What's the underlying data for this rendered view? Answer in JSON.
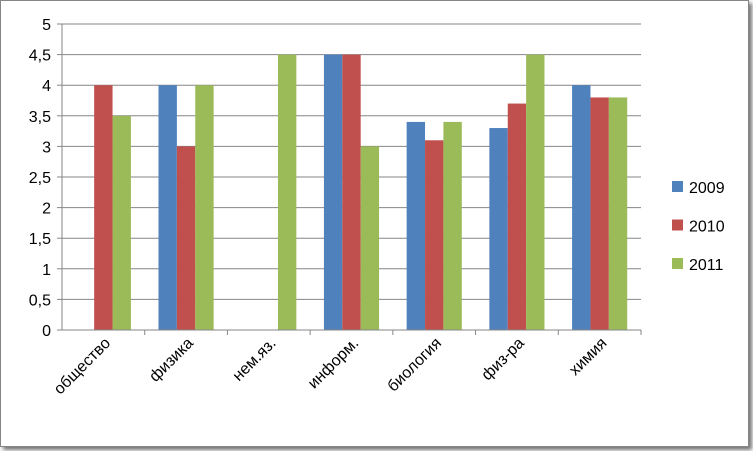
{
  "chart_data": {
    "type": "bar",
    "title": "",
    "xlabel": "",
    "ylabel": "",
    "categories": [
      "общество",
      "физика",
      "нем.яз.",
      "информ.",
      "биология",
      "физ-ра",
      "химия"
    ],
    "series": [
      {
        "name": "2009",
        "color": "#4F81BD",
        "values": [
          null,
          4,
          null,
          4.5,
          3.4,
          3.3,
          4
        ]
      },
      {
        "name": "2010",
        "color": "#C0504D",
        "values": [
          4,
          3,
          null,
          4.5,
          3.1,
          3.7,
          3.8
        ]
      },
      {
        "name": "2011",
        "color": "#9BBB59",
        "values": [
          3.5,
          4,
          4.5,
          3,
          3.4,
          4.5,
          3.8
        ]
      }
    ],
    "ylim": [
      0,
      5
    ],
    "yticks": [
      "0",
      "0,5",
      "1",
      "1,5",
      "2",
      "2,5",
      "3",
      "3,5",
      "4",
      "4,5",
      "5"
    ],
    "grid": true,
    "legend": "right"
  }
}
